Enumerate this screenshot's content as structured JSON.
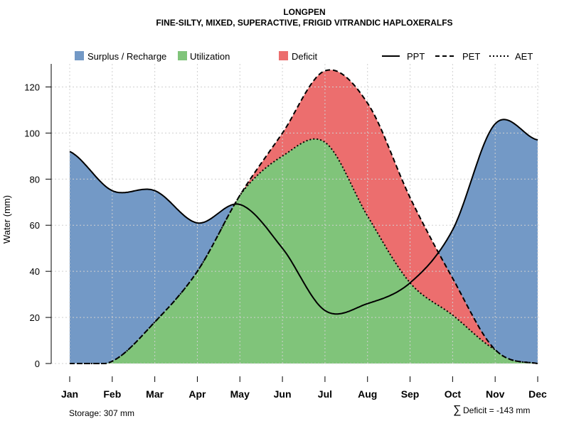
{
  "chart_data": {
    "type": "area",
    "title": "LONGPEN",
    "subtitle": "FINE-SILTY, MIXED, SUPERACTIVE, FRIGID VITRANDIC HAPLOXERALFS",
    "xlabel": "",
    "ylabel": "Water (mm)",
    "ylim": [
      0,
      130
    ],
    "yticks": [
      0,
      20,
      40,
      60,
      80,
      100,
      120
    ],
    "categories": [
      "Jan",
      "Feb",
      "Mar",
      "Apr",
      "May",
      "Jun",
      "Jul",
      "Aug",
      "Sep",
      "Oct",
      "Nov",
      "Dec"
    ],
    "series": [
      {
        "name": "PPT",
        "style": "solid",
        "values": [
          92,
          75,
          75,
          61,
          69,
          50,
          23,
          26,
          35,
          58,
          104,
          97
        ]
      },
      {
        "name": "PET",
        "style": "dashed",
        "values": [
          0,
          1,
          18,
          40,
          73,
          100,
          127,
          113,
          72,
          37,
          6,
          0
        ]
      },
      {
        "name": "AET",
        "style": "dotted",
        "values": [
          0,
          1,
          18,
          40,
          73,
          90,
          96,
          64,
          35,
          21,
          6,
          0
        ]
      }
    ],
    "areas": [
      {
        "name": "Surplus / Recharge",
        "color": "#7399c6"
      },
      {
        "name": "Utilization",
        "color": "#80c47a"
      },
      {
        "name": "Deficit",
        "color": "#ec6e6e"
      }
    ],
    "legend": {
      "position": "top",
      "areas": [
        "Surplus / Recharge",
        "Utilization",
        "Deficit"
      ],
      "lines": [
        "PPT",
        "PET",
        "AET"
      ]
    },
    "grid": true
  },
  "footer": {
    "storage": "Storage: 307 mm",
    "deficit_symbol": "∑",
    "deficit": "Deficit = -143 mm"
  }
}
